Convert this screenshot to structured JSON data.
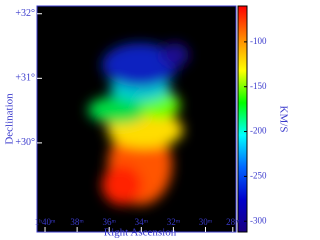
{
  "chart_data": {
    "type": "image",
    "x_label": "Right Ascension",
    "y_label": "Declination",
    "colorbar_label": "KM/S",
    "xlim": [
      40.5,
      28.1
    ],
    "xticks": [
      {
        "value": 40,
        "label": "1ʰ40ᵐ"
      },
      {
        "value": 38,
        "label": "38ᵐ"
      },
      {
        "value": 36,
        "label": "36ᵐ"
      },
      {
        "value": 34,
        "label": "34ᵐ"
      },
      {
        "value": 32,
        "label": "32ᵐ"
      },
      {
        "value": 30,
        "label": "30ᵐ"
      },
      {
        "value": 28.3,
        "label": "28ᵐ"
      }
    ],
    "ylim": [
      28.62,
      32.12
    ],
    "yticks": [
      {
        "value": 32,
        "label": "+32°"
      },
      {
        "value": 31,
        "label": "+31°"
      },
      {
        "value": 30,
        "label": "+30°"
      }
    ],
    "clim": [
      -312,
      -60
    ],
    "cticks": [
      -100,
      -150,
      -200,
      -250,
      -300
    ],
    "colormap": [
      "#ff0000",
      "#ff8800",
      "#ffff00",
      "#00ff00",
      "#00ffff",
      "#0066ff",
      "#0000cc",
      "#1a0080"
    ]
  }
}
